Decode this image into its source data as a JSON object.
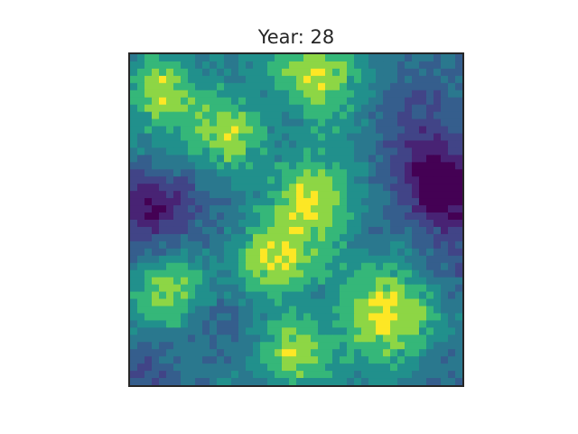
{
  "chart_data": {
    "type": "heatmap",
    "title": "Year: 28",
    "xlabel": "",
    "ylabel": "",
    "colormap": "viridis",
    "axes": "hidden",
    "grid": false,
    "rows": 46,
    "cols": 46,
    "value_range": [
      0,
      1
    ],
    "terrain_model": {
      "baseline": 0.5,
      "peaks": [
        {
          "cx": 4.0,
          "cy": 4.5,
          "a": 0.4,
          "s": 3.5
        },
        {
          "cx": 13.5,
          "cy": 10.0,
          "a": 0.36,
          "s": 3.5
        },
        {
          "cx": 24.5,
          "cy": 2.0,
          "a": 0.36,
          "s": 5.0
        },
        {
          "cx": 27.0,
          "cy": 6.5,
          "a": 0.1,
          "s": 5.0
        },
        {
          "cx": 24.5,
          "cy": 19.5,
          "a": 0.4,
          "s": 3.8
        },
        {
          "cx": 19.0,
          "cy": 28.0,
          "a": 0.4,
          "s": 4.0
        },
        {
          "cx": 4.5,
          "cy": 32.5,
          "a": 0.38,
          "s": 3.5
        },
        {
          "cx": 35.0,
          "cy": 36.0,
          "a": 0.42,
          "s": 5.0
        },
        {
          "cx": 22.0,
          "cy": 41.0,
          "a": 0.4,
          "s": 3.5
        },
        {
          "cx": 8.0,
          "cy": 13.0,
          "a": 0.1,
          "s": 6.0
        },
        {
          "cx": 30.0,
          "cy": 28.0,
          "a": 0.12,
          "s": 7.0
        },
        {
          "cx": 31.0,
          "cy": 14.0,
          "a": 0.08,
          "s": 4.0
        },
        {
          "cx": 43.5,
          "cy": 18.5,
          "a": -0.55,
          "s": 4.0
        },
        {
          "cx": 38.0,
          "cy": 12.0,
          "a": -0.25,
          "s": 5.5
        },
        {
          "cx": 1.5,
          "cy": 21.0,
          "a": -0.45,
          "s": 4.0
        },
        {
          "cx": 6.5,
          "cy": 19.0,
          "a": -0.15,
          "s": 3.0
        },
        {
          "cx": 1.5,
          "cy": 44.0,
          "a": -0.2,
          "s": 3.0
        },
        {
          "cx": 20.0,
          "cy": 7.5,
          "a": -0.15,
          "s": 3.5
        },
        {
          "cx": 33.0,
          "cy": 25.5,
          "a": -0.15,
          "s": 3.0
        },
        {
          "cx": 13.0,
          "cy": 37.0,
          "a": -0.12,
          "s": 3.5
        },
        {
          "cx": 44.0,
          "cy": 29.0,
          "a": -0.18,
          "s": 3.5
        },
        {
          "cx": 44.0,
          "cy": 44.0,
          "a": -0.12,
          "s": 3.5
        },
        {
          "cx": 26.5,
          "cy": 34.5,
          "a": -0.12,
          "s": 3.0
        },
        {
          "cx": 12.5,
          "cy": 23.5,
          "a": -0.08,
          "s": 3.0
        },
        {
          "cx": 40.0,
          "cy": 4.5,
          "a": -0.08,
          "s": 3.0
        }
      ],
      "noise_amplitude": 0.07,
      "noise_seed": 28
    }
  }
}
